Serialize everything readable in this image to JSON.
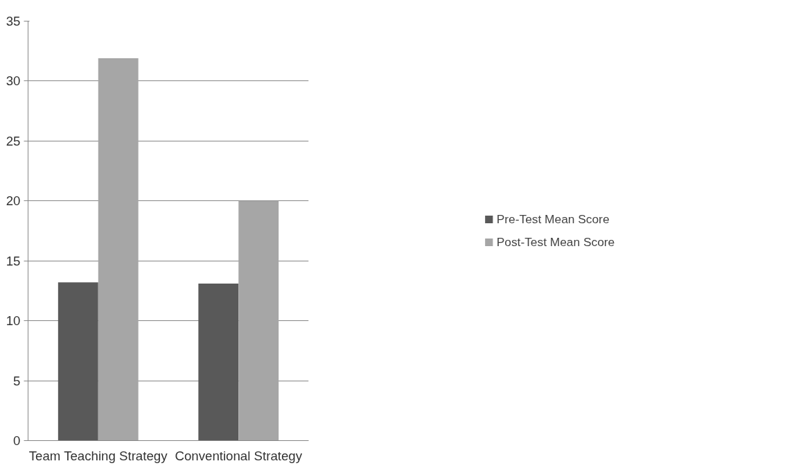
{
  "chart_data": {
    "type": "bar",
    "categories": [
      "Team Teaching Strategy",
      "Conventional Strategy"
    ],
    "series": [
      {
        "name": "Pre-Test Mean Score",
        "color": "#595959",
        "values": [
          13.2,
          13.1
        ]
      },
      {
        "name": "Post-Test Mean Score",
        "color": "#a6a6a6",
        "values": [
          31.9,
          20.0
        ]
      }
    ],
    "ylim": [
      0,
      35
    ],
    "yticks": [
      0,
      5,
      10,
      15,
      20,
      25,
      30,
      35
    ],
    "grid": "y",
    "legend": "right"
  }
}
